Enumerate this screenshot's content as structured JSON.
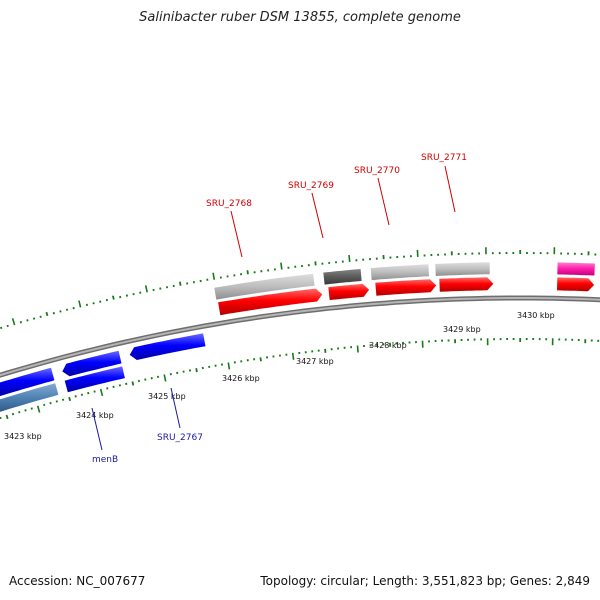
{
  "title": "Salinibacter ruber DSM 13855, complete genome",
  "footer": {
    "accession": "Accession: NC_007677",
    "topology": "Topology: circular; Length: 3,551,823 bp; Genes: 2,849"
  },
  "colors": {
    "backbone": "#888888",
    "forward_cds": "#ff0000",
    "reverse_cds": "#0000ff",
    "gray_gene": "#bdbdbd",
    "dark_gray_gene": "#5a5a5a",
    "steelblue_gene": "#4f82b4",
    "magenta_gene": "#ff1aa8",
    "tick": "#1a7a1a",
    "forward_label": "#d00000",
    "reverse_label": "#1a1aa6"
  },
  "scale": {
    "unit": "kbp",
    "labels": [
      "3423 kbp",
      "3424 kbp",
      "3425 kbp",
      "3426 kbp",
      "3427 kbp",
      "3428 kbp",
      "3429 kbp",
      "3430 kbp"
    ]
  },
  "gene_labels": {
    "forward": [
      "SRU_2768",
      "SRU_2769",
      "SRU_2770",
      "SRU_2771"
    ],
    "reverse": [
      "menB",
      "SRU_2767"
    ]
  },
  "features": [
    {
      "track": "upper-gray",
      "start_kbp": 3425.98,
      "end_kbp": 3427.45,
      "color": "gray_gene"
    },
    {
      "track": "upper-gray",
      "start_kbp": 3427.6,
      "end_kbp": 3428.15,
      "color": "dark_gray_gene"
    },
    {
      "track": "upper-gray",
      "start_kbp": 3428.3,
      "end_kbp": 3429.15,
      "color": "gray_gene"
    },
    {
      "track": "upper-gray",
      "start_kbp": 3429.25,
      "end_kbp": 3430.05,
      "color": "gray_gene"
    },
    {
      "track": "upper-gray",
      "start_kbp": 3431.05,
      "end_kbp": 3431.6,
      "color": "magenta_gene"
    },
    {
      "track": "forward",
      "start_kbp": 3426.0,
      "end_kbp": 3427.55,
      "color": "forward_cds",
      "arrow": "right"
    },
    {
      "track": "forward",
      "start_kbp": 3427.65,
      "end_kbp": 3428.25,
      "color": "forward_cds",
      "arrow": "right"
    },
    {
      "track": "forward",
      "start_kbp": 3428.35,
      "end_kbp": 3429.25,
      "color": "forward_cds",
      "arrow": "right"
    },
    {
      "track": "forward",
      "start_kbp": 3429.3,
      "end_kbp": 3430.1,
      "color": "forward_cds",
      "arrow": "right"
    },
    {
      "track": "forward",
      "start_kbp": 3431.05,
      "end_kbp": 3431.6,
      "color": "forward_cds",
      "arrow": "right"
    },
    {
      "track": "reverse",
      "start_kbp": 3422.4,
      "end_kbp": 3423.35,
      "color": "reverse_cds",
      "arrow": "left"
    },
    {
      "track": "reverse",
      "start_kbp": 3423.5,
      "end_kbp": 3424.4,
      "color": "reverse_cds",
      "arrow": "left"
    },
    {
      "track": "reverse",
      "start_kbp": 3424.55,
      "end_kbp": 3425.7,
      "color": "reverse_cds",
      "arrow": "left"
    },
    {
      "track": "lower-gene",
      "start_kbp": 3422.4,
      "end_kbp": 3423.35,
      "color": "steelblue_gene"
    },
    {
      "track": "lower-gene",
      "start_kbp": 3423.5,
      "end_kbp": 3424.4,
      "color": "reverse_cds"
    }
  ]
}
